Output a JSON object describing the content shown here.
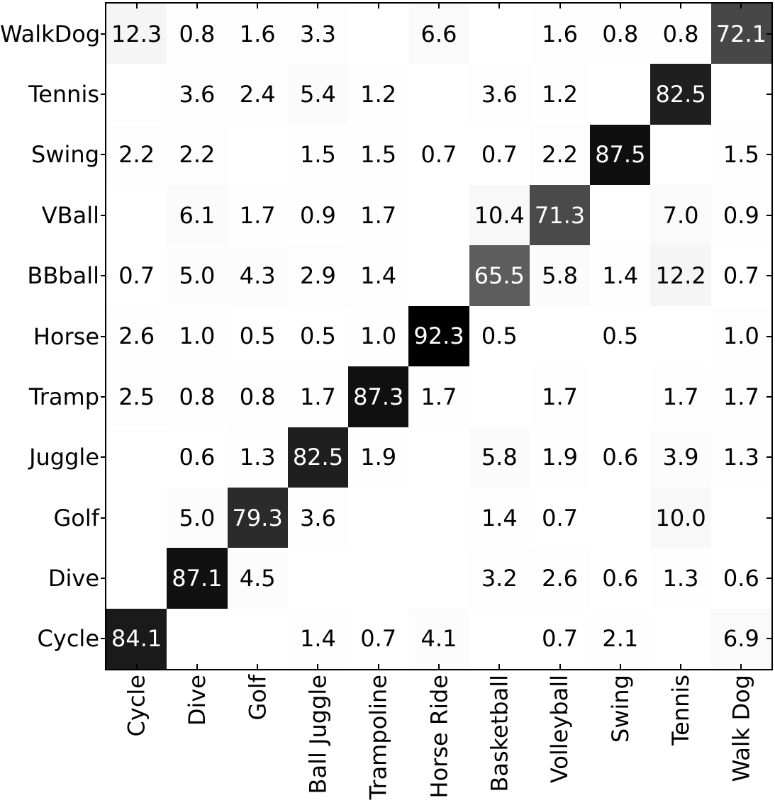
{
  "figure": {
    "background": "#ffffff"
  },
  "chart_data": {
    "type": "heatmap",
    "title": "",
    "description": "Confusion matrix of action classes, values in percent; blank cells are zero",
    "row_labels": [
      "WalkDog",
      "Tennis",
      "Swing",
      "VBall",
      "BBball",
      "Horse",
      "Tramp",
      "Juggle",
      "Golf",
      "Dive",
      "Cycle"
    ],
    "col_labels": [
      "Cycle",
      "Dive",
      "Golf",
      "Ball Juggle",
      "Trampoline",
      "Horse Ride",
      "Basketball",
      "Volleyball",
      "Swing",
      "Tennis",
      "Walk Dog"
    ],
    "values": [
      [
        12.3,
        0.8,
        1.6,
        3.3,
        null,
        6.6,
        null,
        1.6,
        0.8,
        0.8,
        72.1
      ],
      [
        null,
        3.6,
        2.4,
        5.4,
        1.2,
        null,
        3.6,
        1.2,
        null,
        82.5,
        null
      ],
      [
        2.2,
        2.2,
        null,
        1.5,
        1.5,
        0.7,
        0.7,
        2.2,
        87.5,
        null,
        1.5
      ],
      [
        null,
        6.1,
        1.7,
        0.9,
        1.7,
        null,
        10.4,
        71.3,
        null,
        7.0,
        0.9
      ],
      [
        0.7,
        5.0,
        4.3,
        2.9,
        1.4,
        null,
        65.5,
        5.8,
        1.4,
        12.2,
        0.7
      ],
      [
        2.6,
        1.0,
        0.5,
        0.5,
        1.0,
        92.3,
        0.5,
        null,
        0.5,
        null,
        1.0
      ],
      [
        2.5,
        0.8,
        0.8,
        1.7,
        87.3,
        1.7,
        null,
        1.7,
        null,
        1.7,
        1.7
      ],
      [
        null,
        0.6,
        1.3,
        82.5,
        1.9,
        null,
        5.8,
        1.9,
        0.6,
        3.9,
        1.3
      ],
      [
        null,
        5.0,
        79.3,
        3.6,
        null,
        null,
        1.4,
        0.7,
        null,
        10.0,
        null
      ],
      [
        null,
        87.1,
        4.5,
        null,
        null,
        null,
        3.2,
        2.6,
        0.6,
        1.3,
        0.6
      ],
      [
        84.1,
        null,
        null,
        1.4,
        0.7,
        4.1,
        null,
        0.7,
        2.1,
        null,
        6.9
      ]
    ],
    "colormap": "Greys",
    "vmin": 0,
    "vmax": 92.3,
    "value_format": "0.1f",
    "grid": false,
    "legend": "none",
    "colors": {
      "low": "#ffffff",
      "high": "#000000",
      "cell_text_dark": "#000000",
      "cell_text_light": "#ffffff",
      "spine": "#000000"
    }
  }
}
